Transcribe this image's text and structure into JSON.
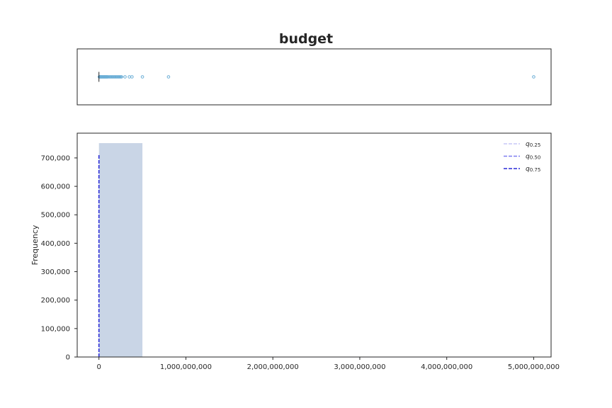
{
  "chart_data": {
    "title": "budget",
    "boxplot": {
      "type": "boxplot",
      "orientation": "horizontal",
      "median": 0,
      "q1": 0,
      "q3": 0,
      "whisker_low": 0,
      "whisker_high": 0,
      "outliers": [
        4000000,
        8000000,
        12000000,
        16000000,
        20000000,
        25000000,
        30000000,
        35000000,
        40000000,
        45000000,
        50000000,
        55000000,
        60000000,
        65000000,
        70000000,
        75000000,
        80000000,
        85000000,
        90000000,
        95000000,
        100000000,
        110000000,
        120000000,
        130000000,
        140000000,
        150000000,
        160000000,
        170000000,
        180000000,
        190000000,
        200000000,
        210000000,
        220000000,
        230000000,
        240000000,
        250000000,
        260000000,
        300000000,
        350000000,
        380000000,
        500000000,
        800000000,
        5000000000
      ],
      "color": "#6baed6"
    },
    "histogram": {
      "type": "bar",
      "xlabel": "",
      "ylabel": "Frequency",
      "xlim": [
        -250000000,
        5200000000
      ],
      "ylim": [
        0,
        787000
      ],
      "bins": [
        {
          "x0": 0,
          "x1": 500000000,
          "count": 752000
        },
        {
          "x0": 500000000,
          "x1": 1000000000,
          "count": 600
        },
        {
          "x0": 1000000000,
          "x1": 1500000000,
          "count": 30
        },
        {
          "x0": 1500000000,
          "x1": 2000000000,
          "count": 10
        },
        {
          "x0": 2000000000,
          "x1": 2500000000,
          "count": 5
        },
        {
          "x0": 2500000000,
          "x1": 3000000000,
          "count": 3
        },
        {
          "x0": 3000000000,
          "x1": 3500000000,
          "count": 2
        },
        {
          "x0": 3500000000,
          "x1": 4000000000,
          "count": 2
        },
        {
          "x0": 4000000000,
          "x1": 4500000000,
          "count": 1
        },
        {
          "x0": 4500000000,
          "x1": 5000000000,
          "count": 1
        }
      ],
      "bar_color": "#c9d5e6",
      "xticks": [
        0,
        1000000000,
        2000000000,
        3000000000,
        4000000000,
        5000000000
      ],
      "xtick_labels": [
        "0",
        "1,000,000,000",
        "2,000,000,000",
        "3,000,000,000",
        "4,000,000,000",
        "5,000,000,000"
      ],
      "yticks": [
        0,
        100000,
        200000,
        300000,
        400000,
        500000,
        600000,
        700000
      ],
      "ytick_labels": [
        "0",
        "100,000",
        "200,000",
        "300,000",
        "400,000",
        "500,000",
        "600,000",
        "700,000"
      ],
      "quantile_lines": [
        {
          "name": "q0.25",
          "value": 0,
          "height": 710000,
          "color": "#c7c7f7"
        },
        {
          "name": "q0.50",
          "value": 0,
          "height": 710000,
          "color": "#7f7ff0"
        },
        {
          "name": "q0.75",
          "value": 0,
          "height": 710000,
          "color": "#2a2ad8"
        }
      ],
      "legend": {
        "position": "top-right",
        "entries": [
          {
            "symbol": "q",
            "sub": "0.25",
            "color": "#c7c7f7"
          },
          {
            "symbol": "q",
            "sub": "0.50",
            "color": "#7f7ff0"
          },
          {
            "symbol": "q",
            "sub": "0.75",
            "color": "#2a2ad8"
          }
        ]
      }
    }
  }
}
